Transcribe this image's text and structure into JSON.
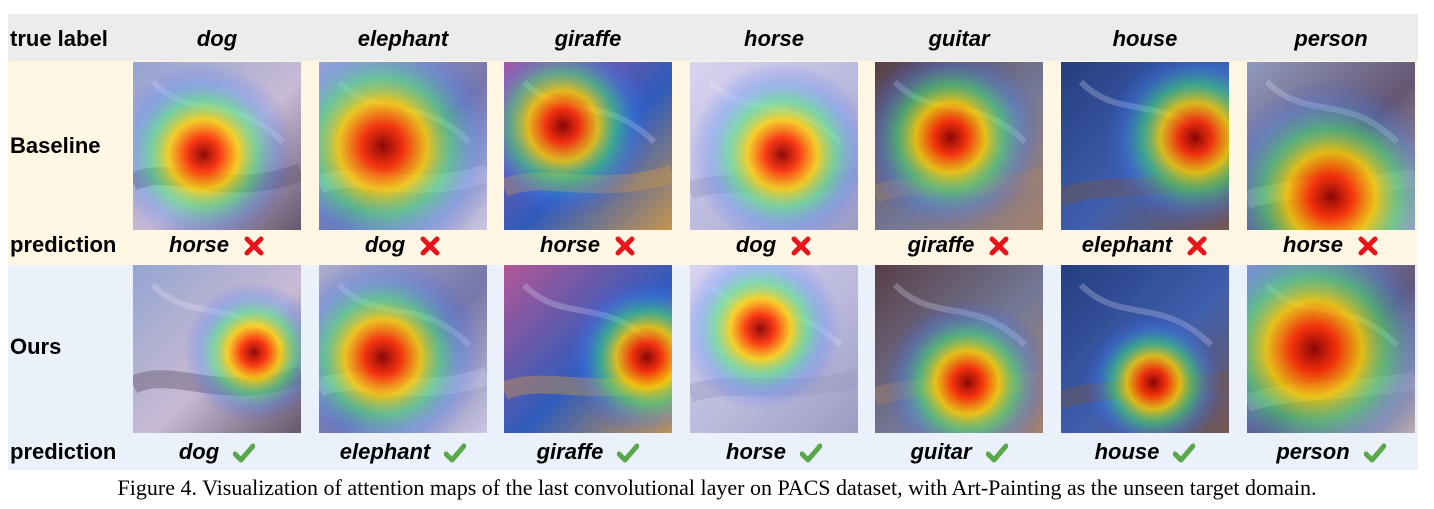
{
  "header": {
    "true_label_title": "true label"
  },
  "rows": {
    "baseline_title": "Baseline",
    "prediction_title": "prediction",
    "ours_title": "Ours"
  },
  "columns": [
    {
      "true_label": "dog",
      "baseline_prediction": "horse",
      "baseline_correct": false,
      "ours_prediction": "dog",
      "ours_correct": true
    },
    {
      "true_label": "elephant",
      "baseline_prediction": "dog",
      "baseline_correct": false,
      "ours_prediction": "elephant",
      "ours_correct": true
    },
    {
      "true_label": "giraffe",
      "baseline_prediction": "horse",
      "baseline_correct": false,
      "ours_prediction": "giraffe",
      "ours_correct": true
    },
    {
      "true_label": "horse",
      "baseline_prediction": "dog",
      "baseline_correct": false,
      "ours_prediction": "horse",
      "ours_correct": true
    },
    {
      "true_label": "guitar",
      "baseline_prediction": "giraffe",
      "baseline_correct": false,
      "ours_prediction": "guitar",
      "ours_correct": true
    },
    {
      "true_label": "house",
      "baseline_prediction": "elephant",
      "baseline_correct": false,
      "ours_prediction": "house",
      "ours_correct": true
    },
    {
      "true_label": "person",
      "baseline_prediction": "horse",
      "baseline_correct": false,
      "ours_prediction": "person",
      "ours_correct": true
    }
  ],
  "marks": {
    "wrong_icon": "red-cross-icon",
    "correct_icon": "green-check-icon",
    "wrong_color": "#e8141c",
    "correct_color": "#5aa84a"
  },
  "caption": "Figure 4. Visualization of attention maps of the last convolutional layer on PACS dataset, with Art-Painting as the unseen target domain."
}
